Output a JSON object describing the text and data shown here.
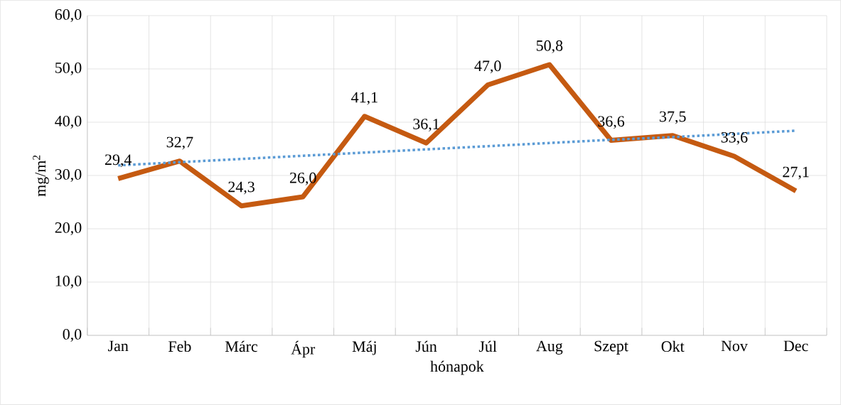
{
  "chart_data": {
    "type": "line",
    "xlabel": "hónapok",
    "ylabel": "mg/m$^{2}$",
    "categories": [
      "Jan",
      "Feb",
      "Márc",
      "Ápr",
      "Máj",
      "Jún",
      "Júl",
      "Aug",
      "Szept",
      "Okt",
      "Nov",
      "Dec"
    ],
    "series": [
      {
        "color": "#c55a11",
        "line_style": "solid",
        "values": [
          29.4,
          32.7,
          24.3,
          26.0,
          41.1,
          36.1,
          47.0,
          50.8,
          36.6,
          37.5,
          33.6,
          27.1
        ],
        "value_labels": [
          "29,4",
          "32,7",
          "24,3",
          "26,0",
          "41,1",
          "36,1",
          "47,0",
          "50,8",
          "36,6",
          "37,5",
          "33,6",
          "27,1"
        ]
      },
      {
        "color": "#5b9bd5",
        "line_style": "dotted",
        "values": [
          31.9,
          32.5,
          33.1,
          33.7,
          34.3,
          34.9,
          35.5,
          36.1,
          36.7,
          37.2,
          37.8,
          38.4
        ]
      }
    ],
    "ylim": [
      0,
      60
    ],
    "yticks": [
      {
        "value": 0,
        "label": "0,0"
      },
      {
        "value": 10,
        "label": "10,0"
      },
      {
        "value": 20,
        "label": "20,0"
      },
      {
        "value": 30,
        "label": "30,0"
      },
      {
        "value": 40,
        "label": "40,0"
      },
      {
        "value": 50,
        "label": "50,0"
      },
      {
        "value": 60,
        "label": "60,0"
      }
    ],
    "grid": true,
    "marker": "none"
  }
}
